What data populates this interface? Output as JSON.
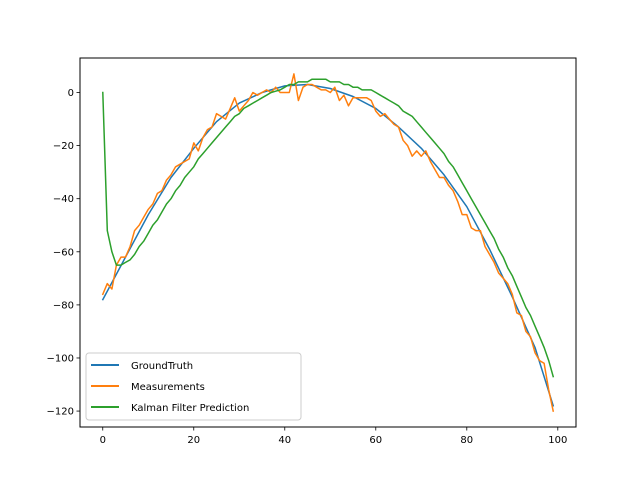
{
  "chart_data": {
    "type": "line",
    "title": "",
    "xlabel": "",
    "ylabel": "",
    "xlim": [
      -5,
      104
    ],
    "ylim": [
      -126,
      13
    ],
    "xticks": [
      0,
      20,
      40,
      60,
      80,
      100
    ],
    "yticks": [
      0,
      -20,
      -40,
      -60,
      -80,
      -100,
      -120
    ],
    "grid": false,
    "legend_position": "lower-left",
    "series": [
      {
        "name": "GroundTruth",
        "color": "#1f77b4",
        "x": [
          0,
          5,
          10,
          15,
          20,
          25,
          30,
          35,
          40,
          45,
          50,
          55,
          60,
          65,
          70,
          75,
          80,
          85,
          90,
          95,
          99
        ],
        "y": [
          -78,
          -62,
          -46,
          -32,
          -21,
          -11,
          -4,
          0,
          2.5,
          3,
          1.5,
          -1.5,
          -6,
          -13,
          -21,
          -31,
          -43,
          -59,
          -77,
          -96,
          -118
        ]
      },
      {
        "name": "Measurements",
        "color": "#ff7f0e",
        "x": [
          0,
          1,
          2,
          3,
          4,
          5,
          6,
          7,
          8,
          9,
          10,
          11,
          12,
          13,
          14,
          15,
          16,
          17,
          18,
          19,
          20,
          21,
          22,
          23,
          24,
          25,
          26,
          27,
          28,
          29,
          30,
          31,
          32,
          33,
          34,
          35,
          36,
          37,
          38,
          39,
          40,
          41,
          42,
          43,
          44,
          45,
          46,
          47,
          48,
          49,
          50,
          51,
          52,
          53,
          54,
          55,
          56,
          57,
          58,
          59,
          60,
          61,
          62,
          63,
          64,
          65,
          66,
          67,
          68,
          69,
          70,
          71,
          72,
          73,
          74,
          75,
          76,
          77,
          78,
          79,
          80,
          81,
          82,
          83,
          84,
          85,
          86,
          87,
          88,
          89,
          90,
          91,
          92,
          93,
          94,
          95,
          96,
          97,
          98,
          99
        ],
        "y": [
          -76,
          -72,
          -74,
          -65,
          -62,
          -62,
          -58,
          -52,
          -50,
          -47,
          -44,
          -42,
          -38,
          -37,
          -33,
          -31,
          -28,
          -27,
          -26,
          -25,
          -19,
          -22,
          -17,
          -14,
          -13,
          -8,
          -9,
          -10,
          -6,
          -2,
          -7,
          -5,
          -3,
          0,
          -1,
          0,
          1,
          0,
          2,
          0,
          0,
          0,
          7,
          -3,
          2,
          3,
          3,
          2,
          1,
          1,
          0,
          2,
          -3,
          -1,
          -5,
          -2,
          -2,
          -2,
          -2,
          -3,
          -7,
          -9,
          -8,
          -10,
          -12,
          -13,
          -18,
          -20,
          -24,
          -22,
          -24,
          -22,
          -26,
          -29,
          -32,
          -32,
          -35,
          -37,
          -41,
          -46,
          -46,
          -51,
          -52,
          -52,
          -58,
          -61,
          -64,
          -68,
          -70,
          -72,
          -76,
          -83,
          -84,
          -90,
          -92,
          -98,
          -101,
          -102,
          -112,
          -120
        ]
      },
      {
        "name": "Kalman Filter Prediction",
        "color": "#2ca02c",
        "x": [
          0,
          1,
          2,
          3,
          4,
          5,
          6,
          7,
          8,
          9,
          10,
          11,
          12,
          13,
          14,
          15,
          16,
          17,
          18,
          19,
          20,
          21,
          22,
          23,
          24,
          25,
          26,
          27,
          28,
          29,
          30,
          31,
          32,
          33,
          34,
          35,
          36,
          37,
          38,
          39,
          40,
          41,
          42,
          43,
          44,
          45,
          46,
          47,
          48,
          49,
          50,
          51,
          52,
          53,
          54,
          55,
          56,
          57,
          58,
          59,
          60,
          61,
          62,
          63,
          64,
          65,
          66,
          67,
          68,
          69,
          70,
          71,
          72,
          73,
          74,
          75,
          76,
          77,
          78,
          79,
          80,
          81,
          82,
          83,
          84,
          85,
          86,
          87,
          88,
          89,
          90,
          91,
          92,
          93,
          94,
          95,
          96,
          97,
          98,
          99
        ],
        "y": [
          0,
          -52,
          -60,
          -65,
          -65,
          -64,
          -63,
          -61,
          -58,
          -56,
          -53,
          -50,
          -48,
          -45,
          -42,
          -40,
          -37,
          -35,
          -32,
          -30,
          -28,
          -25,
          -23,
          -21,
          -19,
          -17,
          -15,
          -13,
          -11,
          -9,
          -8,
          -6,
          -5,
          -4,
          -3,
          -2,
          -1,
          0,
          0.5,
          1,
          2,
          3,
          3,
          4,
          4,
          4,
          5,
          5,
          5,
          5,
          4,
          4,
          4,
          3,
          3,
          2,
          2,
          1,
          1,
          1,
          0,
          -1,
          -2,
          -3,
          -4,
          -5,
          -7,
          -8,
          -9,
          -11,
          -13,
          -15,
          -17,
          -19,
          -21,
          -23,
          -26,
          -28,
          -31,
          -34,
          -37,
          -40,
          -43,
          -46,
          -49,
          -52,
          -55,
          -59,
          -62,
          -66,
          -69,
          -73,
          -77,
          -81,
          -84,
          -88,
          -92,
          -96,
          -101,
          -107
        ]
      }
    ]
  }
}
